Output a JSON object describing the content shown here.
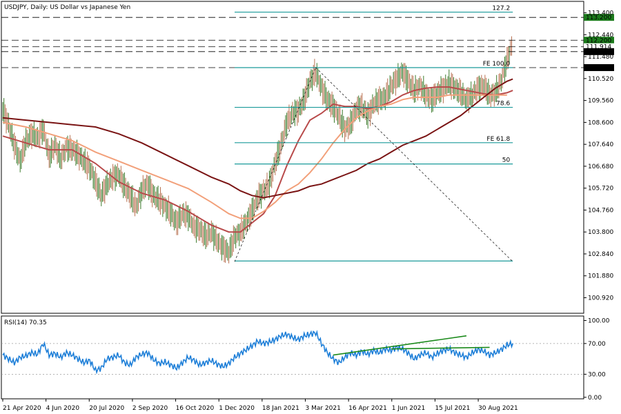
{
  "title": "USDJPY, Daily:  US Dollar vs Japanese Yen",
  "rsi_label": "RSI(14) 70.35",
  "chart_data": [
    {
      "type": "candlestick",
      "name": "price",
      "ylim": [
        100.24,
        113.84
      ],
      "y_ticks": [
        "113.400",
        "112.440",
        "111.480",
        "110.520",
        "109.560",
        "108.600",
        "107.640",
        "106.680",
        "105.720",
        "104.760",
        "103.800",
        "102.840",
        "101.880",
        "100.920"
      ],
      "y_tick_values": [
        113.4,
        112.44,
        111.48,
        110.52,
        109.56,
        108.6,
        107.64,
        106.68,
        105.72,
        104.76,
        103.8,
        102.84,
        101.88,
        100.92
      ],
      "x_labels": [
        "21 Apr 2020",
        "4 Jun 2020",
        "20 Jul 2020",
        "2 Sep 2020",
        "16 Oct 2020",
        "1 Dec 2020",
        "18 Jan 2021",
        "3 Mar 2021",
        "16 Apr 2021",
        "1 Jun 2021",
        "15 Jul 2021",
        "30 Aug 2021"
      ],
      "close_path": [
        [
          0,
          109.2
        ],
        [
          5,
          108.5
        ],
        [
          10,
          107.6
        ],
        [
          15,
          106.9
        ],
        [
          20,
          107.8
        ],
        [
          25,
          108.1
        ],
        [
          30,
          107.9
        ],
        [
          35,
          108.3
        ],
        [
          40,
          107.1
        ],
        [
          45,
          107.6
        ],
        [
          50,
          107.0
        ],
        [
          55,
          107.5
        ],
        [
          60,
          107.4
        ],
        [
          65,
          107.2
        ],
        [
          70,
          106.9
        ],
        [
          75,
          106.6
        ],
        [
          80,
          106.0
        ],
        [
          85,
          105.4
        ],
        [
          90,
          105.9
        ],
        [
          95,
          106.2
        ],
        [
          100,
          106.3
        ],
        [
          105,
          105.8
        ],
        [
          110,
          105.4
        ],
        [
          115,
          104.9
        ],
        [
          120,
          105.6
        ],
        [
          125,
          105.9
        ],
        [
          130,
          105.4
        ],
        [
          135,
          105.2
        ],
        [
          140,
          104.9
        ],
        [
          145,
          104.6
        ],
        [
          150,
          104.2
        ],
        [
          155,
          104.6
        ],
        [
          160,
          104.5
        ],
        [
          165,
          104.0
        ],
        [
          170,
          103.9
        ],
        [
          175,
          103.6
        ],
        [
          180,
          103.8
        ],
        [
          185,
          103.4
        ],
        [
          190,
          103.1
        ],
        [
          195,
          102.9
        ],
        [
          200,
          103.6
        ],
        [
          205,
          103.8
        ],
        [
          210,
          104.2
        ],
        [
          215,
          104.7
        ],
        [
          220,
          105.3
        ],
        [
          225,
          105.6
        ],
        [
          230,
          105.9
        ],
        [
          235,
          106.8
        ],
        [
          240,
          107.6
        ],
        [
          245,
          108.6
        ],
        [
          250,
          109.0
        ],
        [
          255,
          109.1
        ],
        [
          260,
          109.6
        ],
        [
          265,
          110.4
        ],
        [
          270,
          110.8
        ],
        [
          275,
          110.1
        ],
        [
          280,
          109.6
        ],
        [
          285,
          109.3
        ],
        [
          290,
          108.9
        ],
        [
          295,
          108.3
        ],
        [
          300,
          108.5
        ],
        [
          305,
          109.2
        ],
        [
          310,
          109.3
        ],
        [
          315,
          108.9
        ],
        [
          320,
          109.4
        ],
        [
          325,
          109.6
        ],
        [
          330,
          109.7
        ],
        [
          335,
          110.2
        ],
        [
          340,
          110.5
        ],
        [
          345,
          110.8
        ],
        [
          350,
          110.4
        ],
        [
          355,
          110.0
        ],
        [
          360,
          110.2
        ],
        [
          365,
          109.8
        ],
        [
          370,
          109.6
        ],
        [
          375,
          109.9
        ],
        [
          380,
          110.1
        ],
        [
          385,
          110.3
        ],
        [
          390,
          110.1
        ],
        [
          395,
          109.9
        ],
        [
          400,
          109.6
        ],
        [
          405,
          109.8
        ],
        [
          410,
          110.1
        ],
        [
          415,
          110.2
        ],
        [
          420,
          109.8
        ],
        [
          425,
          109.9
        ],
        [
          430,
          110.4
        ],
        [
          435,
          111.3
        ],
        [
          440,
          112.1
        ]
      ],
      "support_levels_h": [
        {
          "label": "113.200",
          "value": 113.2
        },
        {
          "label": "112.200",
          "value": 112.2
        },
        {
          "label": "111.914",
          "value": 111.914
        },
        {
          "label": "111.700",
          "value": 111.7
        },
        {
          "label": "111.000",
          "value": 111.0
        }
      ],
      "fib_levels": [
        {
          "label": "127.2",
          "value": 113.43
        },
        {
          "label": "FE 100.0",
          "value": 111.0
        },
        {
          "label": "78.6",
          "value": 109.26
        },
        {
          "label": "FE 61.8",
          "value": 107.71
        },
        {
          "label": "50",
          "value": 106.78
        },
        {
          "label": "",
          "value": 102.53
        }
      ],
      "series": [
        {
          "role": "ma_fast",
          "color": "#b84a4a",
          "points": [
            [
              0,
              108.0
            ],
            [
              20,
              107.7
            ],
            [
              40,
              107.4
            ],
            [
              60,
              107.4
            ],
            [
              80,
              106.8
            ],
            [
              100,
              106.0
            ],
            [
              120,
              105.5
            ],
            [
              140,
              105.2
            ],
            [
              160,
              104.7
            ],
            [
              180,
              104.1
            ],
            [
              195,
              103.8
            ],
            [
              205,
              103.8
            ],
            [
              215,
              104.2
            ],
            [
              225,
              104.6
            ],
            [
              235,
              105.4
            ],
            [
              245,
              106.7
            ],
            [
              255,
              107.8
            ],
            [
              265,
              108.7
            ],
            [
              275,
              109.0
            ],
            [
              285,
              109.4
            ],
            [
              295,
              109.3
            ],
            [
              305,
              109.3
            ],
            [
              315,
              109.2
            ],
            [
              325,
              109.3
            ],
            [
              335,
              109.5
            ],
            [
              345,
              109.8
            ],
            [
              355,
              110.0
            ],
            [
              365,
              110.1
            ],
            [
              375,
              110.15
            ],
            [
              385,
              110.15
            ],
            [
              395,
              110.05
            ],
            [
              405,
              109.95
            ],
            [
              415,
              109.85
            ],
            [
              425,
              109.8
            ],
            [
              435,
              109.9
            ],
            [
              440,
              110.0
            ]
          ]
        },
        {
          "role": "ma_mid",
          "color": "#f2a07a",
          "points": [
            [
              0,
              108.6
            ],
            [
              20,
              108.4
            ],
            [
              40,
              108.1
            ],
            [
              60,
              107.8
            ],
            [
              80,
              107.3
            ],
            [
              100,
              106.9
            ],
            [
              120,
              106.5
            ],
            [
              140,
              106.1
            ],
            [
              160,
              105.7
            ],
            [
              180,
              105.1
            ],
            [
              195,
              104.6
            ],
            [
              205,
              104.4
            ],
            [
              215,
              104.4
            ],
            [
              225,
              104.7
            ],
            [
              235,
              105.1
            ],
            [
              245,
              105.6
            ],
            [
              255,
              105.9
            ],
            [
              265,
              106.4
            ],
            [
              275,
              107.0
            ],
            [
              285,
              107.7
            ],
            [
              295,
              108.3
            ],
            [
              305,
              108.8
            ],
            [
              315,
              109.1
            ],
            [
              325,
              109.3
            ],
            [
              335,
              109.4
            ],
            [
              345,
              109.6
            ],
            [
              355,
              109.7
            ],
            [
              365,
              109.7
            ],
            [
              375,
              109.7
            ],
            [
              385,
              109.8
            ],
            [
              395,
              109.8
            ],
            [
              405,
              109.8
            ],
            [
              415,
              109.8
            ],
            [
              425,
              109.8
            ],
            [
              435,
              109.8
            ]
          ]
        },
        {
          "role": "ma_slow",
          "color": "#7a1414",
          "points": [
            [
              0,
              108.8
            ],
            [
              20,
              108.7
            ],
            [
              40,
              108.6
            ],
            [
              60,
              108.5
            ],
            [
              80,
              108.4
            ],
            [
              100,
              108.1
            ],
            [
              120,
              107.7
            ],
            [
              140,
              107.2
            ],
            [
              160,
              106.7
            ],
            [
              180,
              106.2
            ],
            [
              195,
              105.9
            ],
            [
              205,
              105.6
            ],
            [
              215,
              105.4
            ],
            [
              225,
              105.3
            ],
            [
              235,
              105.4
            ],
            [
              245,
              105.5
            ],
            [
              255,
              105.6
            ],
            [
              265,
              105.8
            ],
            [
              275,
              105.9
            ],
            [
              285,
              106.1
            ],
            [
              295,
              106.3
            ],
            [
              305,
              106.5
            ],
            [
              315,
              106.8
            ],
            [
              325,
              107.0
            ],
            [
              335,
              107.3
            ],
            [
              345,
              107.6
            ],
            [
              355,
              107.8
            ],
            [
              365,
              108.0
            ],
            [
              375,
              108.3
            ],
            [
              385,
              108.6
            ],
            [
              395,
              108.9
            ],
            [
              405,
              109.3
            ],
            [
              415,
              109.7
            ],
            [
              425,
              110.1
            ],
            [
              435,
              110.4
            ],
            [
              440,
              110.5
            ]
          ]
        }
      ],
      "trend_lines": [
        {
          "style": "dashed",
          "from": [
            200,
            102.5
          ],
          "to": [
            270,
            111.0
          ]
        },
        {
          "style": "dashed",
          "from": [
            270,
            111.0
          ],
          "to": [
            440,
            102.5
          ]
        }
      ]
    },
    {
      "type": "line",
      "name": "rsi",
      "ylim": [
        -2,
        104
      ],
      "y_ticks": [
        "100.00",
        "70.00",
        "30.00",
        "0.00"
      ],
      "y_tick_values": [
        100,
        70,
        30,
        0
      ],
      "dotted_levels": [
        70,
        30
      ],
      "rsi_path": [
        [
          0,
          55
        ],
        [
          5,
          50
        ],
        [
          10,
          45
        ],
        [
          15,
          52
        ],
        [
          20,
          54
        ],
        [
          25,
          58
        ],
        [
          30,
          56
        ],
        [
          35,
          70
        ],
        [
          40,
          55
        ],
        [
          45,
          57
        ],
        [
          50,
          52
        ],
        [
          55,
          58
        ],
        [
          60,
          55
        ],
        [
          65,
          50
        ],
        [
          70,
          45
        ],
        [
          75,
          48
        ],
        [
          80,
          35
        ],
        [
          85,
          38
        ],
        [
          90,
          50
        ],
        [
          95,
          52
        ],
        [
          100,
          55
        ],
        [
          105,
          45
        ],
        [
          110,
          42
        ],
        [
          115,
          52
        ],
        [
          120,
          56
        ],
        [
          125,
          58
        ],
        [
          130,
          49
        ],
        [
          135,
          44
        ],
        [
          140,
          46
        ],
        [
          145,
          42
        ],
        [
          150,
          38
        ],
        [
          155,
          45
        ],
        [
          160,
          52
        ],
        [
          165,
          48
        ],
        [
          170,
          42
        ],
        [
          175,
          45
        ],
        [
          180,
          48
        ],
        [
          185,
          43
        ],
        [
          190,
          40
        ],
        [
          195,
          44
        ],
        [
          200,
          52
        ],
        [
          205,
          57
        ],
        [
          210,
          62
        ],
        [
          215,
          67
        ],
        [
          220,
          73
        ],
        [
          225,
          70
        ],
        [
          230,
          72
        ],
        [
          235,
          75
        ],
        [
          240,
          80
        ],
        [
          245,
          82
        ],
        [
          250,
          78
        ],
        [
          255,
          75
        ],
        [
          260,
          80
        ],
        [
          265,
          82
        ],
        [
          270,
          84
        ],
        [
          275,
          70
        ],
        [
          280,
          58
        ],
        [
          285,
          50
        ],
        [
          290,
          45
        ],
        [
          295,
          52
        ],
        [
          300,
          58
        ],
        [
          305,
          55
        ],
        [
          310,
          60
        ],
        [
          315,
          56
        ],
        [
          320,
          61
        ],
        [
          325,
          58
        ],
        [
          330,
          63
        ],
        [
          335,
          61
        ],
        [
          340,
          65
        ],
        [
          345,
          63
        ],
        [
          350,
          57
        ],
        [
          355,
          50
        ],
        [
          360,
          55
        ],
        [
          365,
          58
        ],
        [
          370,
          52
        ],
        [
          375,
          57
        ],
        [
          380,
          61
        ],
        [
          385,
          63
        ],
        [
          390,
          58
        ],
        [
          395,
          55
        ],
        [
          400,
          52
        ],
        [
          405,
          58
        ],
        [
          410,
          62
        ],
        [
          415,
          60
        ],
        [
          420,
          55
        ],
        [
          425,
          58
        ],
        [
          430,
          62
        ],
        [
          435,
          68
        ],
        [
          440,
          70
        ]
      ],
      "trend_lines": [
        {
          "from": [
            285,
            55
          ],
          "to": [
            400,
            80
          ]
        },
        {
          "from": [
            335,
            63
          ],
          "to": [
            420,
            65
          ]
        }
      ]
    }
  ]
}
